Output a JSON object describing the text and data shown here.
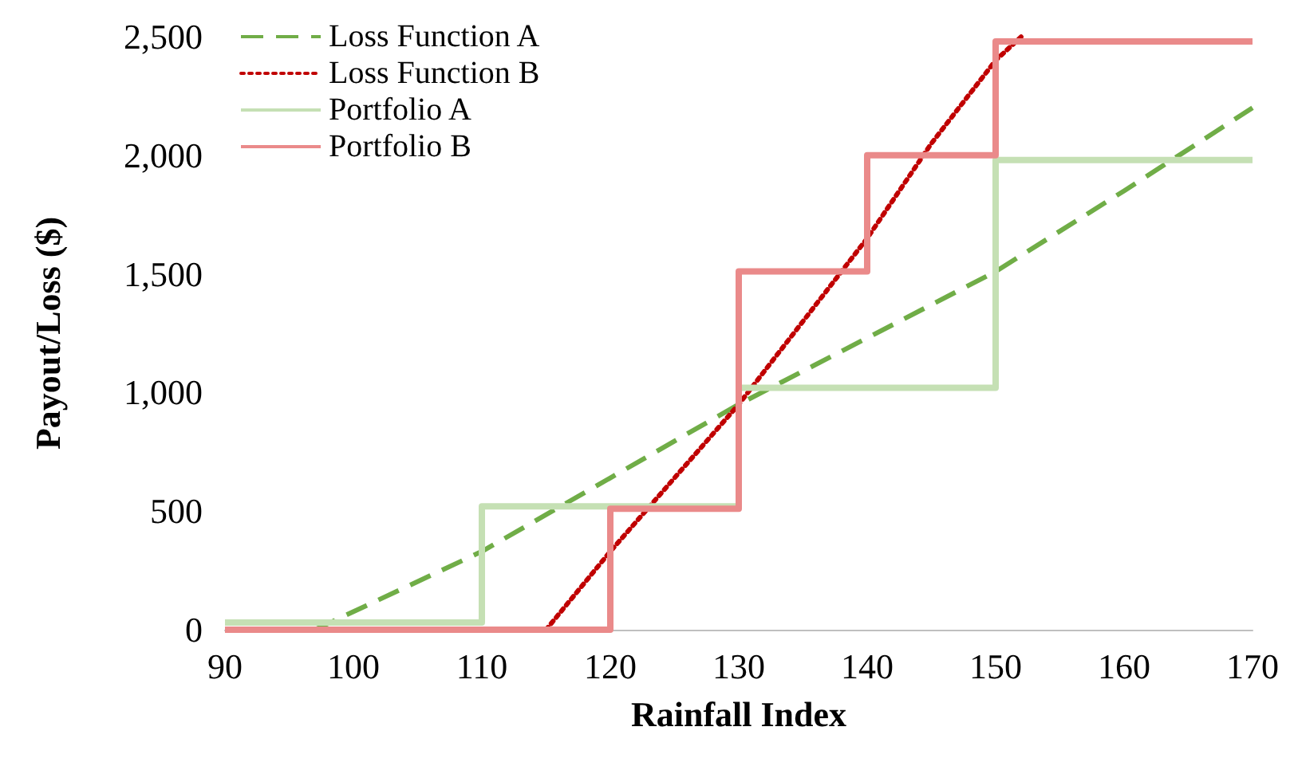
{
  "chart_data": {
    "type": "line",
    "xlabel": "Rainfall Index",
    "ylabel": "Payout/Loss ($)",
    "xlim": [
      90,
      170
    ],
    "xticks": [
      90,
      100,
      110,
      120,
      130,
      140,
      150,
      160,
      170
    ],
    "ylim": [
      0,
      2500
    ],
    "yticks": [
      0,
      {
        "value": 500,
        "label": "500"
      },
      {
        "value": 1000,
        "label": "1,000"
      },
      {
        "value": 1500,
        "label": "1,500"
      },
      {
        "value": 2000,
        "label": "2,000"
      },
      {
        "value": 2500,
        "label": "2,500"
      }
    ],
    "grid": false,
    "legend": "top left",
    "marker": "none",
    "series": [
      {
        "name": "Loss Function A",
        "line_style": "dashed",
        "color": "#70ad47",
        "x": [
          97,
          110,
          120,
          130,
          140,
          150,
          160,
          170
        ],
        "values": [
          0,
          330,
          640,
          950,
          1230,
          1510,
          1850,
          2200
        ]
      },
      {
        "name": "Loss Function B",
        "line_style": "dotted",
        "color": "#c00000",
        "x": [
          115,
          120,
          130,
          140,
          145,
          150,
          152
        ],
        "values": [
          0,
          330,
          950,
          1650,
          2050,
          2400,
          2500
        ]
      },
      {
        "name": "Portfolio A",
        "type": "step",
        "line_style": "solid",
        "color": "#c5e0b4",
        "x": [
          90,
          110,
          130,
          150,
          170
        ],
        "values": [
          30,
          520,
          1020,
          1980,
          1980
        ]
      },
      {
        "name": "Portfolio B",
        "type": "step",
        "line_style": "solid",
        "color": "#ea8a8a",
        "x": [
          90,
          120,
          130,
          140,
          150,
          170
        ],
        "values": [
          0,
          510,
          1510,
          2000,
          2480,
          2480
        ]
      }
    ]
  }
}
